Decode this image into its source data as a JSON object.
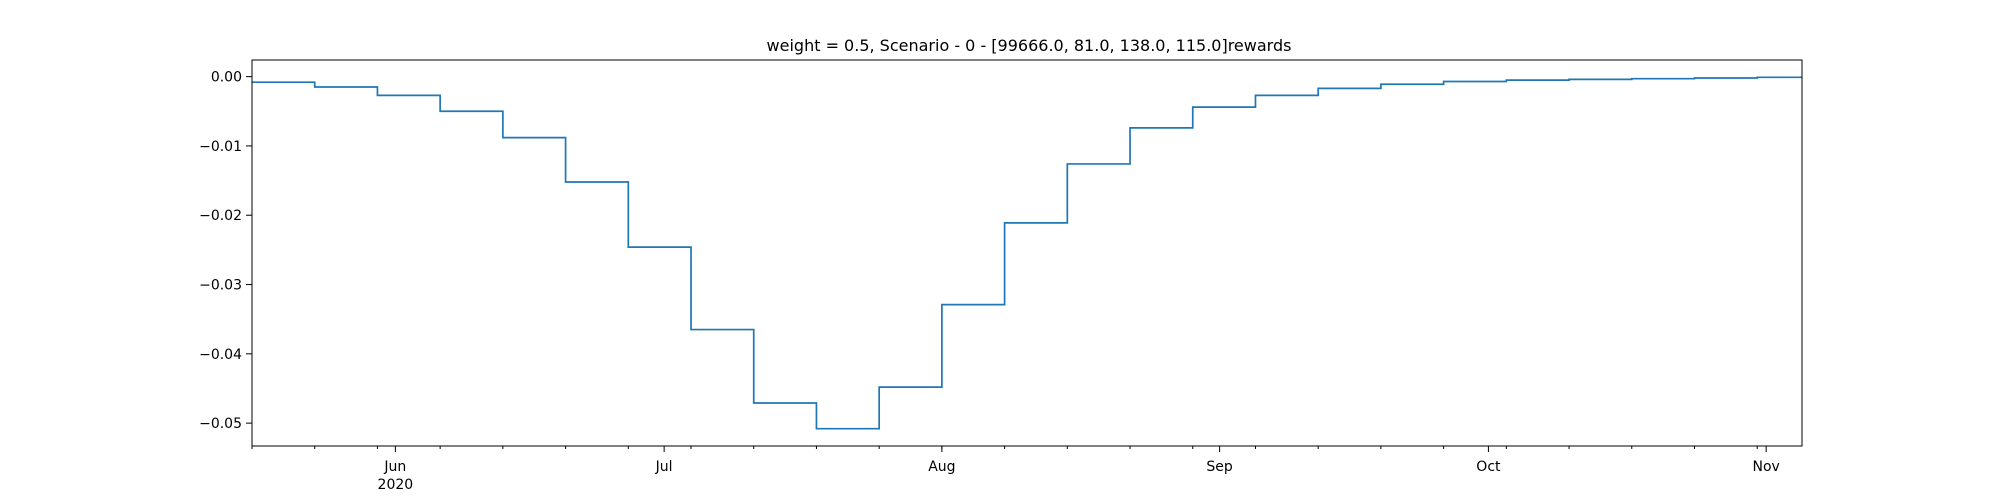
{
  "chart_data": {
    "type": "line",
    "drawstyle": "steps-post",
    "title": "weight = 0.5, Scenario - 0 - [99666.0, 81.0, 138.0, 115.0]rewards",
    "xlabel": "",
    "ylabel": "",
    "xlim": [
      "2020-05-16",
      "2020-11-05"
    ],
    "ylim": [
      -0.0533,
      0.0024
    ],
    "x_ticks": [
      {
        "date": "2020-06-01",
        "label": "Jun",
        "sublabel": "2020"
      },
      {
        "date": "2020-07-01",
        "label": "Jul",
        "sublabel": ""
      },
      {
        "date": "2020-08-01",
        "label": "Aug",
        "sublabel": ""
      },
      {
        "date": "2020-09-01",
        "label": "Sep",
        "sublabel": ""
      },
      {
        "date": "2020-10-01",
        "label": "Oct",
        "sublabel": ""
      },
      {
        "date": "2020-11-01",
        "label": "Nov",
        "sublabel": ""
      }
    ],
    "y_ticks": [
      {
        "value": 0.0,
        "label": "0.00"
      },
      {
        "value": -0.01,
        "label": "−0.01"
      },
      {
        "value": -0.02,
        "label": "−0.02"
      },
      {
        "value": -0.03,
        "label": "−0.03"
      },
      {
        "value": -0.04,
        "label": "−0.04"
      },
      {
        "value": -0.05,
        "label": "−0.05"
      }
    ],
    "grid": false,
    "series": [
      {
        "color": "#1f77b4",
        "x": [
          "2020-05-16",
          "2020-05-23",
          "2020-05-30",
          "2020-06-06",
          "2020-06-13",
          "2020-06-20",
          "2020-06-27",
          "2020-07-04",
          "2020-07-11",
          "2020-07-18",
          "2020-07-25",
          "2020-08-01",
          "2020-08-08",
          "2020-08-15",
          "2020-08-22",
          "2020-08-29",
          "2020-09-05",
          "2020-09-12",
          "2020-09-19",
          "2020-09-26",
          "2020-10-03",
          "2020-10-10",
          "2020-10-17",
          "2020-10-24",
          "2020-10-31",
          "2020-11-05"
        ],
        "values": [
          -0.0008,
          -0.0015,
          -0.0027,
          -0.005,
          -0.0088,
          -0.0152,
          -0.0246,
          -0.0365,
          -0.0471,
          -0.0508,
          -0.0448,
          -0.0329,
          -0.0211,
          -0.0126,
          -0.0074,
          -0.0044,
          -0.0027,
          -0.0017,
          -0.0011,
          -0.0007,
          -0.0005,
          -0.0004,
          -0.0003,
          -0.0002,
          -0.0001,
          -0.0001
        ]
      }
    ]
  }
}
